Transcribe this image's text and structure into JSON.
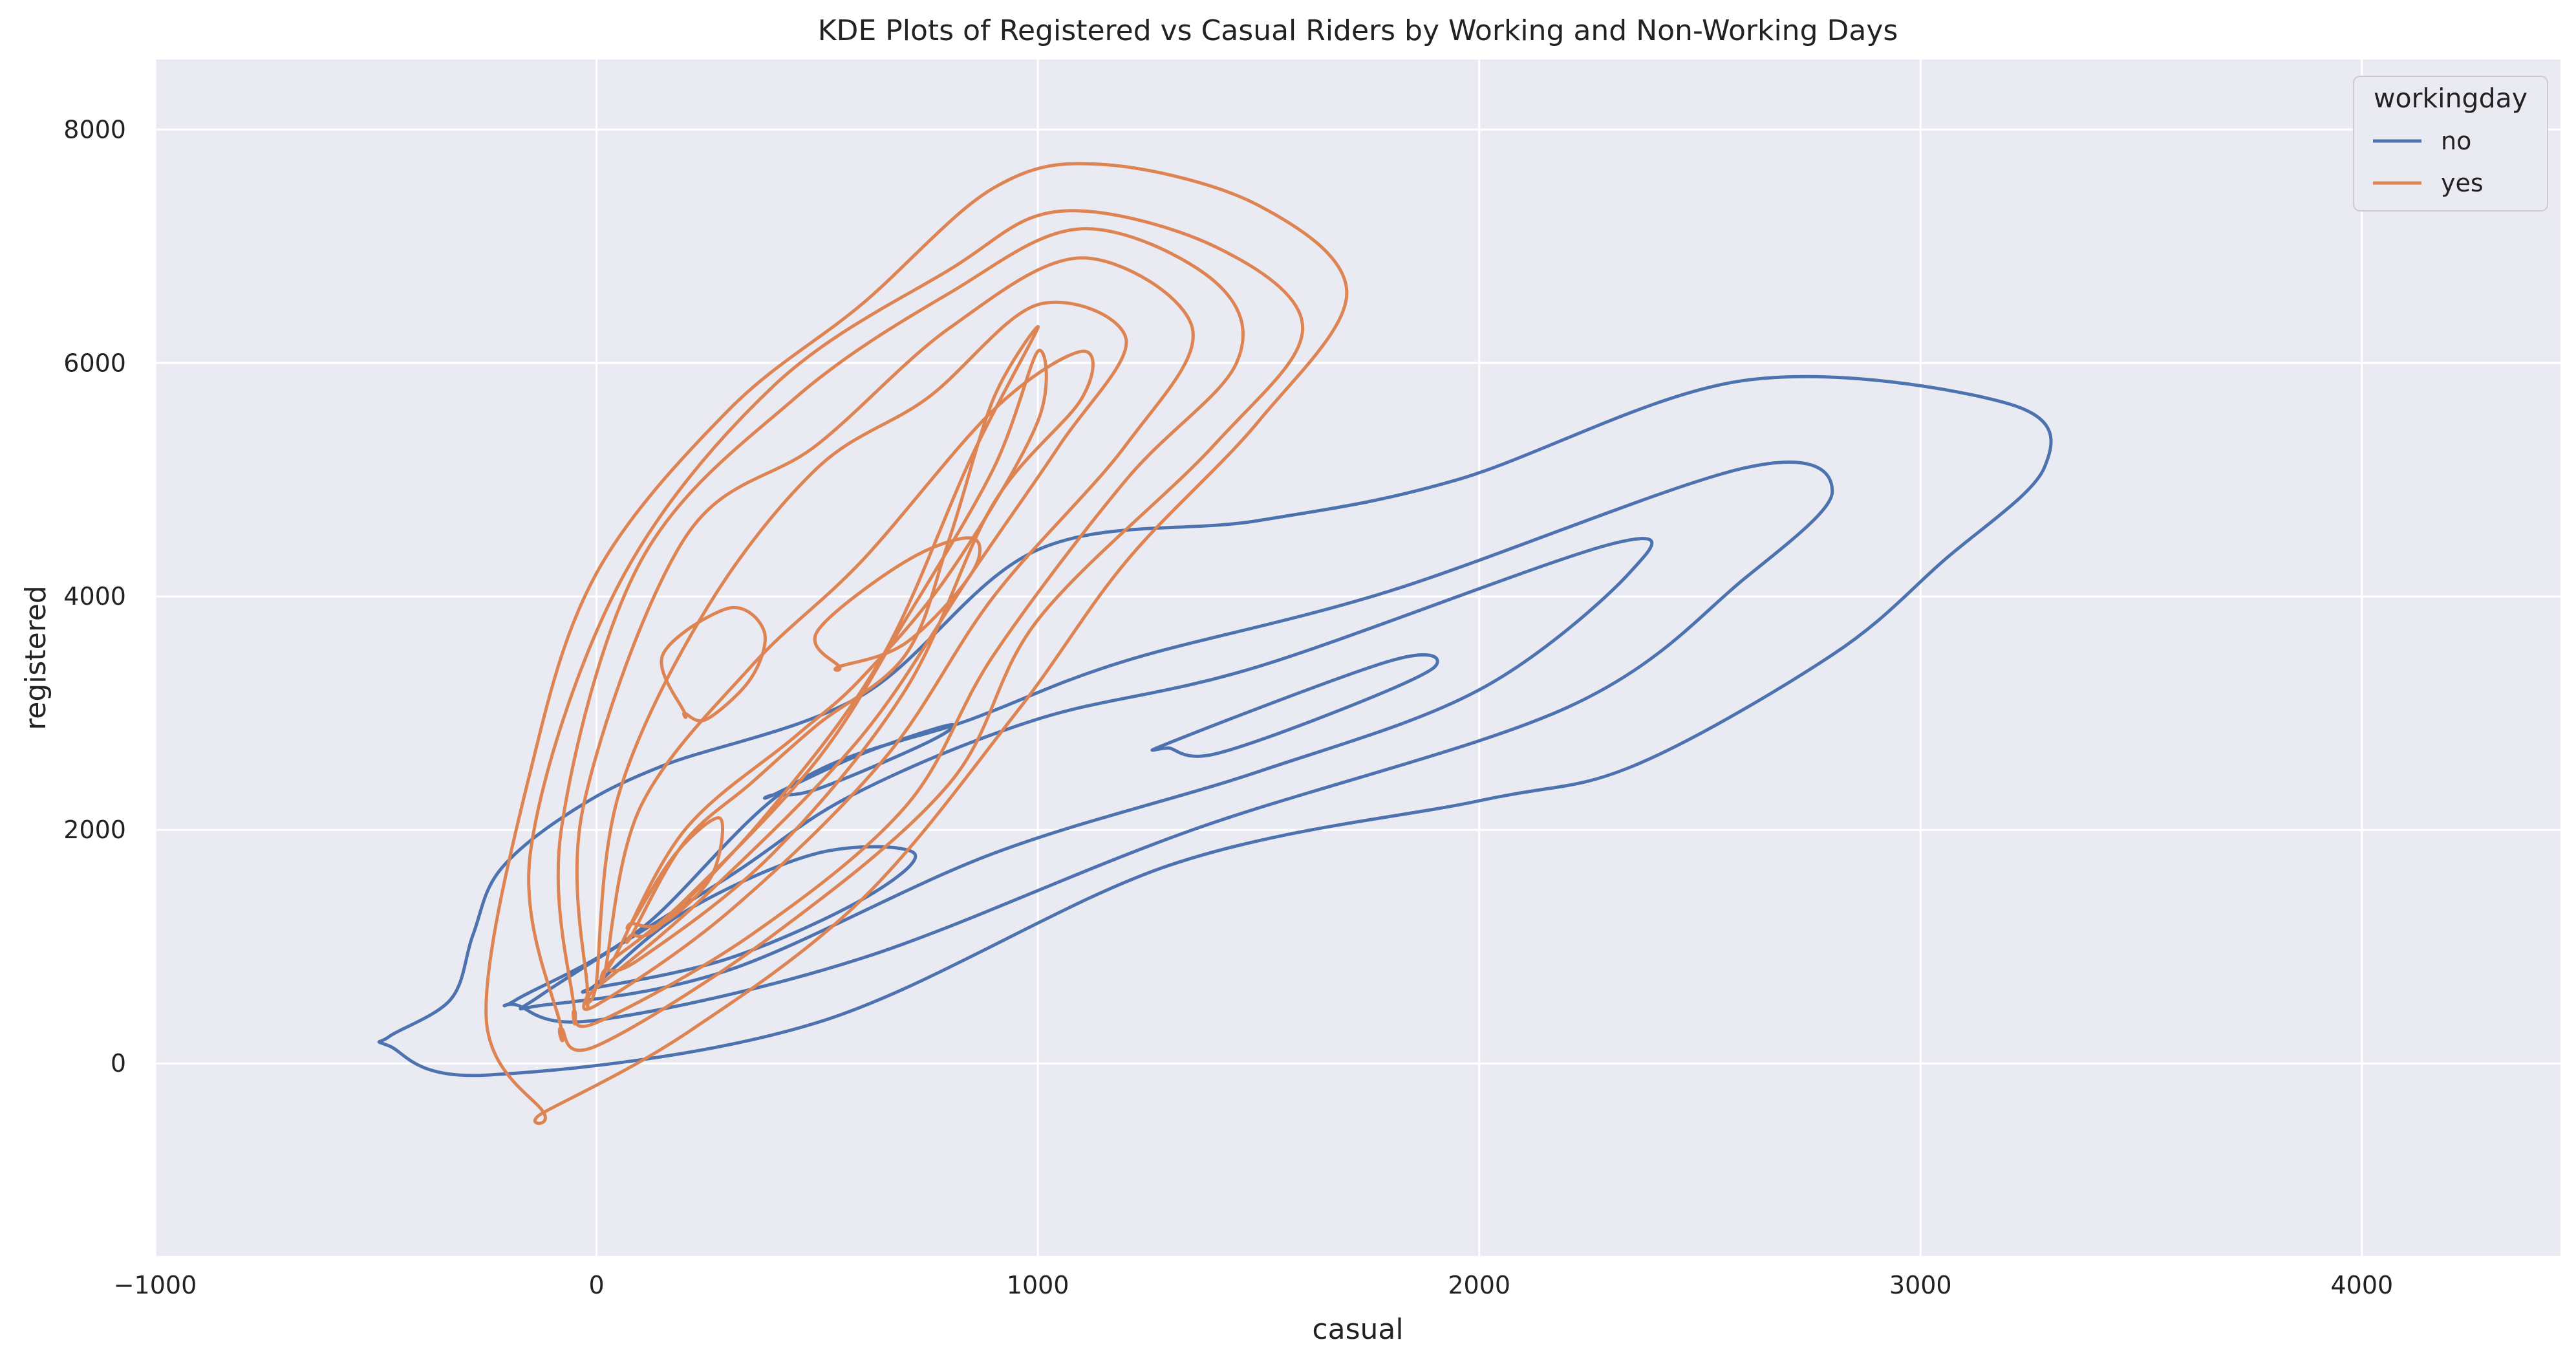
{
  "chart_data": {
    "type": "kde-contour",
    "title": "KDE Plots of Registered vs Casual Riders by Working and Non-Working Days",
    "xlabel": "casual",
    "ylabel": "registered",
    "xlim": [
      -1000,
      4450
    ],
    "ylim": [
      -1650,
      8600
    ],
    "xticks": [
      -1000,
      0,
      1000,
      2000,
      3000,
      4000
    ],
    "xtick_labels": [
      "−1000",
      "0",
      "1000",
      "2000",
      "3000",
      "4000"
    ],
    "yticks": [
      0,
      2000,
      4000,
      6000,
      8000
    ],
    "ytick_labels": [
      "0",
      "2000",
      "4000",
      "6000",
      "8000"
    ],
    "grid": true,
    "background": "#eaeaf2",
    "legend": {
      "title": "workingday",
      "placement": "top-right",
      "entries": [
        {
          "label": "no",
          "color": "#4c72b0"
        },
        {
          "label": "yes",
          "color": "#dd8452"
        }
      ]
    },
    "series": [
      {
        "name": "no",
        "color": "#4c72b0",
        "contours": [
          [
            [
              -470,
              230
            ],
            [
              -330,
              550
            ],
            [
              -280,
              1100
            ],
            [
              -220,
              1650
            ],
            [
              -60,
              2150
            ],
            [
              150,
              2550
            ],
            [
              600,
              3150
            ],
            [
              1000,
              4400
            ],
            [
              1500,
              4650
            ],
            [
              1950,
              5000
            ],
            [
              2600,
              5850
            ],
            [
              3200,
              5650
            ],
            [
              3280,
              5100
            ],
            [
              3050,
              4300
            ],
            [
              2800,
              3500
            ],
            [
              2350,
              2550
            ],
            [
              2000,
              2250
            ],
            [
              1300,
              1700
            ],
            [
              500,
              350
            ],
            [
              -250,
              -100
            ],
            [
              -470,
              150
            ]
          ],
          [
            [
              -180,
              550
            ],
            [
              100,
              1150
            ],
            [
              450,
              2400
            ],
            [
              850,
              2950
            ],
            [
              1200,
              3450
            ],
            [
              1800,
              4050
            ],
            [
              2600,
              5100
            ],
            [
              2800,
              4900
            ],
            [
              2600,
              4150
            ],
            [
              2200,
              3050
            ],
            [
              1350,
              2000
            ],
            [
              600,
              900
            ],
            [
              0,
              370
            ],
            [
              -180,
              500
            ]
          ],
          [
            [
              -120,
              600
            ],
            [
              300,
              1600
            ],
            [
              580,
              2300
            ],
            [
              1000,
              2950
            ],
            [
              1500,
              3400
            ],
            [
              2300,
              4450
            ],
            [
              2340,
              4200
            ],
            [
              2000,
              3200
            ],
            [
              1500,
              2500
            ],
            [
              900,
              1800
            ],
            [
              300,
              800
            ],
            [
              -120,
              500
            ]
          ],
          [
            [
              1300,
              2750
            ],
            [
              1800,
              3450
            ],
            [
              1900,
              3400
            ],
            [
              1700,
              3050
            ],
            [
              1400,
              2650
            ],
            [
              1300,
              2700
            ]
          ],
          [
            [
              0,
              680
            ],
            [
              200,
              1300
            ],
            [
              500,
              1800
            ],
            [
              720,
              1800
            ],
            [
              600,
              1400
            ],
            [
              300,
              900
            ],
            [
              0,
              650
            ]
          ],
          [
            [
              400,
              2300
            ],
            [
              600,
              2650
            ],
            [
              800,
              2900
            ],
            [
              750,
              2750
            ],
            [
              500,
              2350
            ],
            [
              400,
              2300
            ]
          ]
        ]
      },
      {
        "name": "yes",
        "color": "#dd8452",
        "contours": [
          [
            [
              -120,
              -420
            ],
            [
              -250,
              400
            ],
            [
              -150,
              2500
            ],
            [
              0,
              4200
            ],
            [
              300,
              5600
            ],
            [
              600,
              6500
            ],
            [
              900,
              7500
            ],
            [
              1150,
              7700
            ],
            [
              1500,
              7350
            ],
            [
              1700,
              6600
            ],
            [
              1500,
              5500
            ],
            [
              1200,
              4300
            ],
            [
              950,
              3000
            ],
            [
              600,
              1400
            ],
            [
              200,
              250
            ],
            [
              -120,
              -420
            ]
          ],
          [
            [
              -80,
              300
            ],
            [
              -150,
              1800
            ],
            [
              50,
              4100
            ],
            [
              400,
              5800
            ],
            [
              800,
              6800
            ],
            [
              1050,
              7300
            ],
            [
              1400,
              7000
            ],
            [
              1600,
              6300
            ],
            [
              1400,
              5300
            ],
            [
              1000,
              3800
            ],
            [
              800,
              2400
            ],
            [
              400,
              1100
            ],
            [
              0,
              150
            ],
            [
              -80,
              300
            ]
          ],
          [
            [
              -50,
              450
            ],
            [
              -80,
              2000
            ],
            [
              100,
              4300
            ],
            [
              450,
              5700
            ],
            [
              800,
              6600
            ],
            [
              1100,
              7150
            ],
            [
              1400,
              6700
            ],
            [
              1450,
              6000
            ],
            [
              1200,
              5000
            ],
            [
              900,
              3500
            ],
            [
              700,
              2200
            ],
            [
              350,
              1100
            ],
            [
              0,
              350
            ],
            [
              -50,
              450
            ]
          ],
          [
            [
              -20,
              600
            ],
            [
              -30,
              2200
            ],
            [
              200,
              4500
            ],
            [
              500,
              5300
            ],
            [
              800,
              6300
            ],
            [
              1100,
              6900
            ],
            [
              1350,
              6300
            ],
            [
              1200,
              5300
            ],
            [
              900,
              4000
            ],
            [
              650,
              2600
            ],
            [
              300,
              1300
            ],
            [
              0,
              500
            ],
            [
              -20,
              600
            ]
          ],
          [
            [
              0,
              700
            ],
            [
              50,
              2300
            ],
            [
              250,
              3900
            ],
            [
              500,
              5100
            ],
            [
              750,
              5700
            ],
            [
              1000,
              6500
            ],
            [
              1200,
              6200
            ],
            [
              1050,
              5300
            ],
            [
              850,
              4200
            ],
            [
              600,
              2800
            ],
            [
              250,
              1450
            ],
            [
              0,
              650
            ]
          ],
          [
            [
              20,
              800
            ],
            [
              100,
              2200
            ],
            [
              350,
              3400
            ],
            [
              600,
              4300
            ],
            [
              900,
              5600
            ],
            [
              1100,
              6100
            ],
            [
              1100,
              5700
            ],
            [
              900,
              4800
            ],
            [
              700,
              3200
            ],
            [
              400,
              1800
            ],
            [
              100,
              900
            ],
            [
              20,
              800
            ]
          ],
          [
            [
              40,
              900
            ],
            [
              200,
              2000
            ],
            [
              450,
              2800
            ],
            [
              600,
              3300
            ],
            [
              800,
              4200
            ],
            [
              1000,
              5500
            ],
            [
              1000,
              6100
            ],
            [
              900,
              5100
            ],
            [
              700,
              3800
            ],
            [
              500,
              2600
            ],
            [
              200,
              1400
            ],
            [
              40,
              900
            ]
          ],
          [
            [
              80,
              1100
            ],
            [
              200,
              1900
            ],
            [
              350,
              2400
            ],
            [
              500,
              2900
            ],
            [
              700,
              3500
            ],
            [
              800,
              4500
            ],
            [
              900,
              5700
            ],
            [
              1000,
              6300
            ],
            [
              850,
              5200
            ],
            [
              650,
              3500
            ],
            [
              400,
              2200
            ],
            [
              150,
              1200
            ],
            [
              80,
              1100
            ]
          ],
          [
            [
              80,
              1200
            ],
            [
              180,
              1800
            ],
            [
              280,
              2100
            ],
            [
              260,
              1600
            ],
            [
              150,
              1200
            ],
            [
              80,
              1200
            ]
          ],
          [
            [
              200,
              3000
            ],
            [
              150,
              3500
            ],
            [
              300,
              3900
            ],
            [
              380,
              3700
            ],
            [
              350,
              3300
            ],
            [
              250,
              2950
            ],
            [
              200,
              3000
            ]
          ],
          [
            [
              550,
              3400
            ],
            [
              500,
              3700
            ],
            [
              700,
              4300
            ],
            [
              850,
              4500
            ],
            [
              850,
              4200
            ],
            [
              700,
              3600
            ],
            [
              550,
              3400
            ]
          ]
        ]
      }
    ]
  }
}
